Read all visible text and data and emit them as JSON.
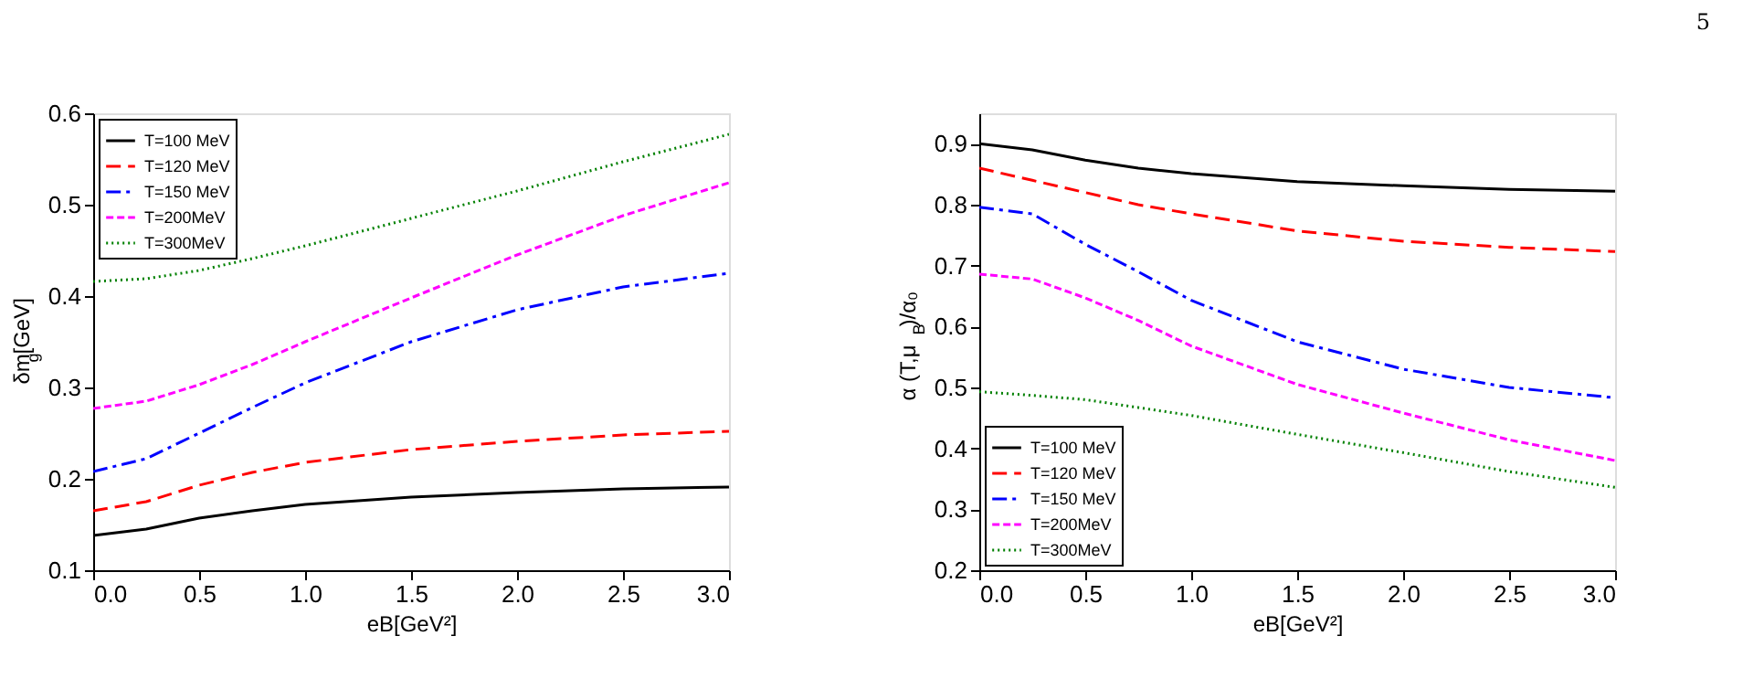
{
  "chart_data": [
    {
      "type": "line",
      "xlabel": "eB[GeV²]",
      "ylabel": "δm$_{g}$[GeV]",
      "legend": "top left",
      "grid": false,
      "x": [
        0,
        0.25,
        0.5,
        0.75,
        1.0,
        1.5,
        2.0,
        2.5,
        3.0
      ],
      "xlim": [
        0,
        3
      ],
      "xticks": [
        {
          "value": 0,
          "label": "0.0"
        },
        {
          "value": 0.5,
          "label": "0.5"
        },
        {
          "value": 1,
          "label": "1.0"
        },
        {
          "value": 1.5,
          "label": "1.5"
        },
        {
          "value": 2,
          "label": "2.0"
        },
        {
          "value": 2.5,
          "label": "2.5"
        },
        {
          "value": 3,
          "label": "3.0"
        }
      ],
      "ylim": [
        0.1,
        0.6
      ],
      "yticks": [
        0.1,
        0.2,
        0.3,
        0.4,
        0.5,
        0.6
      ],
      "series": [
        {
          "name": "T=100 MeV",
          "color": "#000000",
          "line_style": "solid",
          "values": [
            0.138,
            0.145,
            0.157,
            0.165,
            0.172,
            0.18,
            0.185,
            0.189,
            0.191
          ]
        },
        {
          "name": "T=120 MeV",
          "color": "#ff0000",
          "line_style": "dashed",
          "values": [
            0.165,
            0.175,
            0.193,
            0.207,
            0.218,
            0.232,
            0.241,
            0.248,
            0.252
          ]
        },
        {
          "name": "T=150 MeV",
          "color": "#0000ff",
          "line_style": "dashdot",
          "values": [
            0.208,
            0.222,
            0.25,
            0.278,
            0.305,
            0.35,
            0.385,
            0.41,
            0.425
          ]
        },
        {
          "name": "T=200MeV",
          "color": "#ff00ff",
          "line_style": "shortdash",
          "values": [
            0.277,
            0.285,
            0.303,
            0.325,
            0.35,
            0.398,
            0.445,
            0.488,
            0.524
          ]
        },
        {
          "name": "T=300MeV",
          "color": "#008000",
          "line_style": "dotted",
          "values": [
            0.416,
            0.419,
            0.428,
            0.441,
            0.455,
            0.485,
            0.515,
            0.547,
            0.577
          ]
        }
      ]
    },
    {
      "type": "line",
      "xlabel": "eB[GeV²]",
      "ylabel": "α (T,μ$_{B}$)/α₀",
      "legend": "bottom left",
      "grid": false,
      "annotations": [
        "5"
      ],
      "x": [
        0,
        0.25,
        0.5,
        0.75,
        1.0,
        1.5,
        2.0,
        2.5,
        3.0
      ],
      "xlim": [
        0,
        3
      ],
      "xticks": [
        {
          "value": 0,
          "label": "0.0"
        },
        {
          "value": 0.5,
          "label": "0.5"
        },
        {
          "value": 1,
          "label": "1.0"
        },
        {
          "value": 1.5,
          "label": "1.5"
        },
        {
          "value": 2,
          "label": "2.0"
        },
        {
          "value": 2.5,
          "label": "2.5"
        },
        {
          "value": 3,
          "label": "3.0"
        }
      ],
      "ylim": [
        0.2,
        0.95
      ],
      "yticks": [
        0.2,
        0.3,
        0.4,
        0.5,
        0.6,
        0.7,
        0.8,
        0.9
      ],
      "series": [
        {
          "name": "T=100 MeV",
          "color": "#000000",
          "line_style": "solid",
          "values": [
            0.9,
            0.89,
            0.873,
            0.86,
            0.851,
            0.838,
            0.831,
            0.825,
            0.822
          ]
        },
        {
          "name": "T=120 MeV",
          "color": "#ff0000",
          "line_style": "dashed",
          "values": [
            0.86,
            0.84,
            0.82,
            0.8,
            0.785,
            0.757,
            0.74,
            0.73,
            0.723
          ]
        },
        {
          "name": "T=150 MeV",
          "color": "#0000ff",
          "line_style": "dashdot",
          "values": [
            0.796,
            0.785,
            0.735,
            0.69,
            0.643,
            0.575,
            0.53,
            0.5,
            0.483
          ]
        },
        {
          "name": "T=200MeV",
          "color": "#ff00ff",
          "line_style": "shortdash",
          "values": [
            0.686,
            0.678,
            0.647,
            0.61,
            0.568,
            0.505,
            0.458,
            0.414,
            0.38
          ]
        },
        {
          "name": "T=300MeV",
          "color": "#008000",
          "line_style": "dotted",
          "values": [
            0.493,
            0.487,
            0.48,
            0.467,
            0.454,
            0.423,
            0.393,
            0.362,
            0.336
          ]
        }
      ]
    }
  ]
}
